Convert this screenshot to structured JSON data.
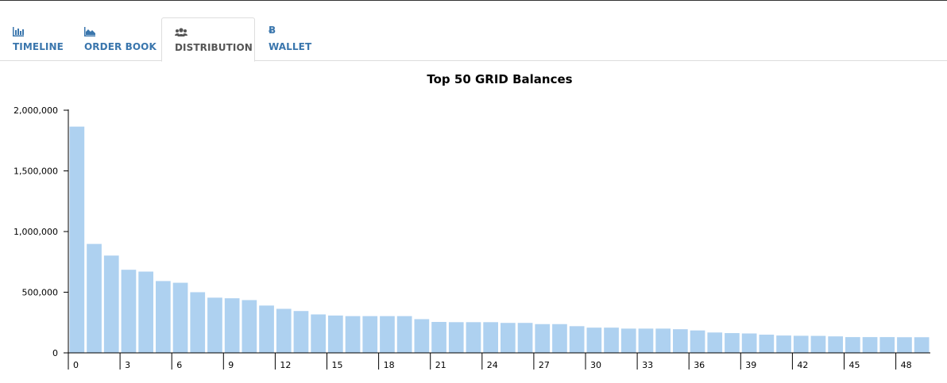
{
  "tabs": [
    {
      "label": "TIMELINE",
      "icon": "bar-chart-icon",
      "active": false
    },
    {
      "label": "ORDER BOOK",
      "icon": "area-chart-icon",
      "active": false
    },
    {
      "label": "DISTRIBUTION",
      "icon": "users-icon",
      "active": true
    },
    {
      "label": "WALLET",
      "icon": "bitcoin-icon",
      "active": false
    }
  ],
  "colors": {
    "tab_text": "#3a76ad",
    "tab_active_text": "#555555",
    "bar": "#aed1f0"
  },
  "chart_data": {
    "type": "bar",
    "title": "Top 50 GRID Balances",
    "xlabel": "",
    "ylabel": "",
    "ylim": [
      0,
      2000000
    ],
    "yticks": [
      0,
      500000,
      1000000,
      1500000,
      2000000
    ],
    "ytick_labels": [
      "0",
      "500,000",
      "1,000,000",
      "1,500,000",
      "2,000,000"
    ],
    "xtick_values": [
      0,
      3,
      6,
      9,
      12,
      15,
      18,
      21,
      24,
      27,
      30,
      33,
      36,
      39,
      42,
      45,
      48
    ],
    "xtick_labels": [
      "0",
      "3",
      "6",
      "9",
      "12",
      "15",
      "18",
      "21",
      "24",
      "27",
      "30",
      "33",
      "36",
      "39",
      "42",
      "45",
      "48"
    ],
    "categories": [
      0,
      1,
      2,
      3,
      4,
      5,
      6,
      7,
      8,
      9,
      10,
      11,
      12,
      13,
      14,
      15,
      16,
      17,
      18,
      19,
      20,
      21,
      22,
      23,
      24,
      25,
      26,
      27,
      28,
      29,
      30,
      31,
      32,
      33,
      34,
      35,
      36,
      37,
      38,
      39,
      40,
      41,
      42,
      43,
      44,
      45,
      46,
      47,
      48,
      49
    ],
    "values": [
      1865000,
      898000,
      802000,
      685000,
      670000,
      592000,
      578000,
      500000,
      455000,
      450000,
      435000,
      390000,
      363000,
      345000,
      317000,
      308000,
      303000,
      303000,
      303000,
      303000,
      278000,
      255000,
      253000,
      253000,
      253000,
      247000,
      247000,
      237000,
      237000,
      220000,
      208000,
      208000,
      200000,
      200000,
      200000,
      195000,
      185000,
      168000,
      163000,
      160000,
      150000,
      143000,
      141000,
      140000,
      136000,
      130000,
      130000,
      130000,
      129000,
      129000
    ],
    "grid": false,
    "legend": "none"
  }
}
